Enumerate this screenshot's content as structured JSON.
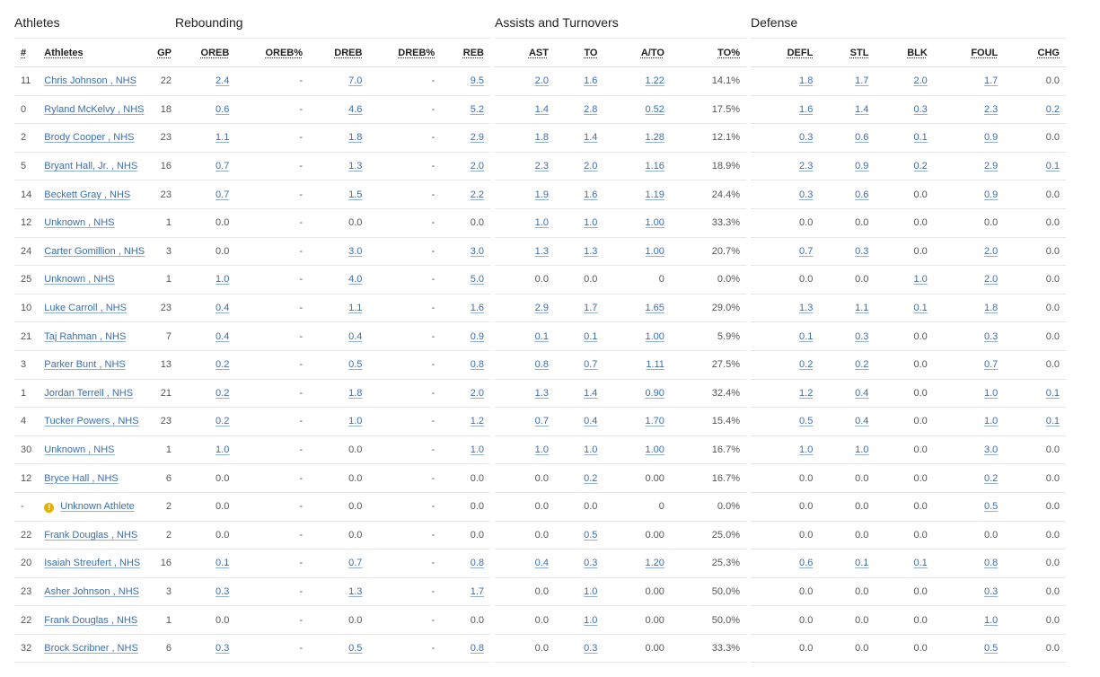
{
  "sections": {
    "athletes": "Athletes",
    "rebounding": "Rebounding",
    "assists": "Assists and Turnovers",
    "defense": "Defense"
  },
  "headers": {
    "athletes": [
      "#",
      "Athletes",
      "GP"
    ],
    "rebounding": [
      "OREB",
      "OREB%",
      "DREB",
      "DREB%",
      "REB"
    ],
    "assists": [
      "AST",
      "TO",
      "A/TO",
      "TO%"
    ],
    "defense": [
      "DEFL",
      "STL",
      "BLK",
      "FOUL",
      "CHG"
    ]
  },
  "colors": {
    "link": "#3a6fb0",
    "warning": "#e5b100"
  },
  "icons": {
    "unknown_athlete": "warning-icon"
  },
  "rows": [
    {
      "num": "11",
      "name": "Chris Johnson , NHS",
      "gp": "22",
      "reb": [
        "2.4",
        "-",
        "7.0",
        "-",
        "9.5"
      ],
      "ast": [
        "2.0",
        "1.6",
        "1.22",
        "14.1%"
      ],
      "def": [
        "1.8",
        "1.7",
        "2.0",
        "1.7",
        "0.0"
      ]
    },
    {
      "num": "0",
      "name": "Ryland McKelvy , NHS",
      "gp": "18",
      "reb": [
        "0.6",
        "-",
        "4.6",
        "-",
        "5.2"
      ],
      "ast": [
        "1.4",
        "2.8",
        "0.52",
        "17.5%"
      ],
      "def": [
        "1.6",
        "1.4",
        "0.3",
        "2.3",
        "0.2"
      ]
    },
    {
      "num": "2",
      "name": "Brody Cooper , NHS",
      "gp": "23",
      "reb": [
        "1.1",
        "-",
        "1.8",
        "-",
        "2.9"
      ],
      "ast": [
        "1.8",
        "1.4",
        "1.28",
        "12.1%"
      ],
      "def": [
        "0.3",
        "0.6",
        "0.1",
        "0.9",
        "0.0"
      ]
    },
    {
      "num": "5",
      "name": "Bryant Hall, Jr. , NHS",
      "gp": "16",
      "reb": [
        "0.7",
        "-",
        "1.3",
        "-",
        "2.0"
      ],
      "ast": [
        "2.3",
        "2.0",
        "1.16",
        "18.9%"
      ],
      "def": [
        "2.3",
        "0.9",
        "0.2",
        "2.9",
        "0.1"
      ]
    },
    {
      "num": "14",
      "name": "Beckett Gray , NHS",
      "gp": "23",
      "reb": [
        "0.7",
        "-",
        "1.5",
        "-",
        "2.2"
      ],
      "ast": [
        "1.9",
        "1.6",
        "1.19",
        "24.4%"
      ],
      "def": [
        "0.3",
        "0.6",
        "0.0",
        "0.9",
        "0.0"
      ]
    },
    {
      "num": "12",
      "name": "Unknown , NHS",
      "gp": "1",
      "reb": [
        "0.0",
        "-",
        "0.0",
        "-",
        "0.0"
      ],
      "ast": [
        "1.0",
        "1.0",
        "1.00",
        "33.3%"
      ],
      "def": [
        "0.0",
        "0.0",
        "0.0",
        "0.0",
        "0.0"
      ]
    },
    {
      "num": "24",
      "name": "Carter Gomillion , NHS",
      "gp": "3",
      "reb": [
        "0.0",
        "-",
        "3.0",
        "-",
        "3.0"
      ],
      "ast": [
        "1.3",
        "1.3",
        "1.00",
        "20.7%"
      ],
      "def": [
        "0.7",
        "0.3",
        "0.0",
        "2.0",
        "0.0"
      ]
    },
    {
      "num": "25",
      "name": "Unknown , NHS",
      "gp": "1",
      "reb": [
        "1.0",
        "-",
        "4.0",
        "-",
        "5.0"
      ],
      "ast": [
        "0.0",
        "0.0",
        "0",
        "0.0%"
      ],
      "def": [
        "0.0",
        "0.0",
        "1.0",
        "2.0",
        "0.0"
      ]
    },
    {
      "num": "10",
      "name": "Luke Carroll , NHS",
      "gp": "23",
      "reb": [
        "0.4",
        "-",
        "1.1",
        "-",
        "1.6"
      ],
      "ast": [
        "2.9",
        "1.7",
        "1.65",
        "29.0%"
      ],
      "def": [
        "1.3",
        "1.1",
        "0.1",
        "1.8",
        "0.0"
      ]
    },
    {
      "num": "21",
      "name": "Taj Rahman , NHS",
      "gp": "7",
      "reb": [
        "0.4",
        "-",
        "0.4",
        "-",
        "0.9"
      ],
      "ast": [
        "0.1",
        "0.1",
        "1.00",
        "5.9%"
      ],
      "def": [
        "0.1",
        "0.3",
        "0.0",
        "0.3",
        "0.0"
      ]
    },
    {
      "num": "3",
      "name": "Parker Bunt , NHS",
      "gp": "13",
      "reb": [
        "0.2",
        "-",
        "0.5",
        "-",
        "0.8"
      ],
      "ast": [
        "0.8",
        "0.7",
        "1.11",
        "27.5%"
      ],
      "def": [
        "0.2",
        "0.2",
        "0.0",
        "0.7",
        "0.0"
      ]
    },
    {
      "num": "1",
      "name": "Jordan Terrell , NHS",
      "gp": "21",
      "reb": [
        "0.2",
        "-",
        "1.8",
        "-",
        "2.0"
      ],
      "ast": [
        "1.3",
        "1.4",
        "0.90",
        "32.4%"
      ],
      "def": [
        "1.2",
        "0.4",
        "0.0",
        "1.0",
        "0.1"
      ]
    },
    {
      "num": "4",
      "name": "Tucker Powers , NHS",
      "gp": "23",
      "reb": [
        "0.2",
        "-",
        "1.0",
        "-",
        "1.2"
      ],
      "ast": [
        "0.7",
        "0.4",
        "1.70",
        "15.4%"
      ],
      "def": [
        "0.5",
        "0.4",
        "0.0",
        "1.0",
        "0.1"
      ]
    },
    {
      "num": "30",
      "name": "Unknown , NHS",
      "gp": "1",
      "reb": [
        "1.0",
        "-",
        "0.0",
        "-",
        "1.0"
      ],
      "ast": [
        "1.0",
        "1.0",
        "1.00",
        "16.7%"
      ],
      "def": [
        "1.0",
        "1.0",
        "0.0",
        "3.0",
        "0.0"
      ]
    },
    {
      "num": "12",
      "name": "Bryce Hall , NHS",
      "gp": "6",
      "reb": [
        "0.0",
        "-",
        "0.0",
        "-",
        "0.0"
      ],
      "ast": [
        "0.0",
        "0.2",
        "0.00",
        "16.7%"
      ],
      "def": [
        "0.0",
        "0.0",
        "0.0",
        "0.2",
        "0.0"
      ]
    },
    {
      "num": "-",
      "name": "Unknown Athlete",
      "gp": "2",
      "warn": true,
      "reb": [
        "0.0",
        "-",
        "0.0",
        "-",
        "0.0"
      ],
      "ast": [
        "0.0",
        "0.0",
        "0",
        "0.0%"
      ],
      "def": [
        "0.0",
        "0.0",
        "0.0",
        "0.5",
        "0.0"
      ]
    },
    {
      "num": "22",
      "name": "Frank Douglas , NHS",
      "gp": "2",
      "reb": [
        "0.0",
        "-",
        "0.0",
        "-",
        "0.0"
      ],
      "ast": [
        "0.0",
        "0.5",
        "0.00",
        "25.0%"
      ],
      "def": [
        "0.0",
        "0.0",
        "0.0",
        "0.0",
        "0.0"
      ]
    },
    {
      "num": "20",
      "name": "Isaiah Streufert , NHS",
      "gp": "16",
      "reb": [
        "0.1",
        "-",
        "0.7",
        "-",
        "0.8"
      ],
      "ast": [
        "0.4",
        "0.3",
        "1.20",
        "25.3%"
      ],
      "def": [
        "0.6",
        "0.1",
        "0.1",
        "0.8",
        "0.0"
      ]
    },
    {
      "num": "23",
      "name": "Asher Johnson , NHS",
      "gp": "3",
      "reb": [
        "0.3",
        "-",
        "1.3",
        "-",
        "1.7"
      ],
      "ast": [
        "0.0",
        "1.0",
        "0.00",
        "50.0%"
      ],
      "def": [
        "0.0",
        "0.0",
        "0.0",
        "0.3",
        "0.0"
      ]
    },
    {
      "num": "22",
      "name": "Frank Douglas , NHS",
      "gp": "1",
      "reb": [
        "0.0",
        "-",
        "0.0",
        "-",
        "0.0"
      ],
      "ast": [
        "0.0",
        "1.0",
        "0.00",
        "50.0%"
      ],
      "def": [
        "0.0",
        "0.0",
        "0.0",
        "1.0",
        "0.0"
      ]
    },
    {
      "num": "32",
      "name": "Brock Scribner , NHS",
      "gp": "6",
      "reb": [
        "0.3",
        "-",
        "0.5",
        "-",
        "0.8"
      ],
      "ast": [
        "0.0",
        "0.3",
        "0.00",
        "33.3%"
      ],
      "def": [
        "0.0",
        "0.0",
        "0.0",
        "0.5",
        "0.0"
      ]
    }
  ]
}
